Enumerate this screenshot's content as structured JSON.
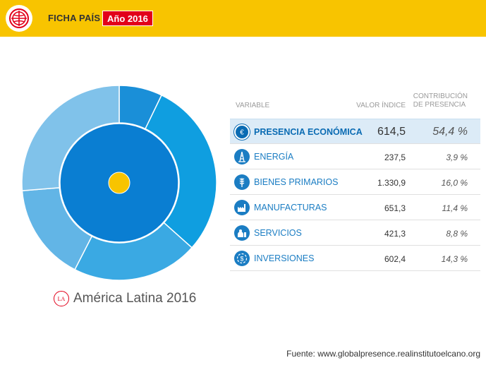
{
  "header": {
    "title": "FICHA PAÍS",
    "year_badge": "Año 2016",
    "logo_icon": "globe-icon",
    "background_color": "#f8c400",
    "badge_color": "#e2001a"
  },
  "region": {
    "icon_text": "LA",
    "label": "América Latina 2016"
  },
  "table": {
    "headers": {
      "variable": "VARIABLE",
      "value_line1": "VALOR ÍNDICE",
      "contrib_line1": "CONTRIBUCIÓN",
      "contrib_line2": "DE PRESENCIA"
    },
    "rows": [
      {
        "label": "PRESENCIA ECONÓMICA",
        "value": "614,5",
        "contribution": "54,4 %",
        "icon": "euro-icon",
        "main": true
      },
      {
        "label": "ENERGÍA",
        "value": "237,5",
        "contribution": "3,9 %",
        "icon": "oil-rig-icon",
        "main": false
      },
      {
        "label": "BIENES PRIMARIOS",
        "value": "1.330,9",
        "contribution": "16,0 %",
        "icon": "wheat-icon",
        "main": false
      },
      {
        "label": "MANUFACTURAS",
        "value": "651,3",
        "contribution": "11,4 %",
        "icon": "factory-icon",
        "main": false
      },
      {
        "label": "SERVICIOS",
        "value": "421,3",
        "contribution": "8,8 %",
        "icon": "service-icon",
        "main": false
      },
      {
        "label": "INVERSIONES",
        "value": "602,4",
        "contribution": "14,3 %",
        "icon": "investment-icon",
        "main": false
      }
    ]
  },
  "chart_data": {
    "type": "pie",
    "inner": {
      "name": "PRESENCIA ECONÓMICA",
      "value": 100,
      "color": "#0a7ed2"
    },
    "outer": [
      {
        "name": "ENERGÍA",
        "value": 3.9,
        "color": "#1a8fd8"
      },
      {
        "name": "BIENES PRIMARIOS",
        "value": 16.0,
        "color": "#0f9ee0"
      },
      {
        "name": "MANUFACTURAS",
        "value": 11.4,
        "color": "#3aa9e3"
      },
      {
        "name": "SERVICIOS",
        "value": 8.8,
        "color": "#62b5e6"
      },
      {
        "name": "INVERSIONES",
        "value": 14.3,
        "color": "#80c2ea"
      }
    ],
    "center_color": "#f8c400"
  },
  "source": "Fuente: www.globalpresence.realinstitutoelcano.org"
}
